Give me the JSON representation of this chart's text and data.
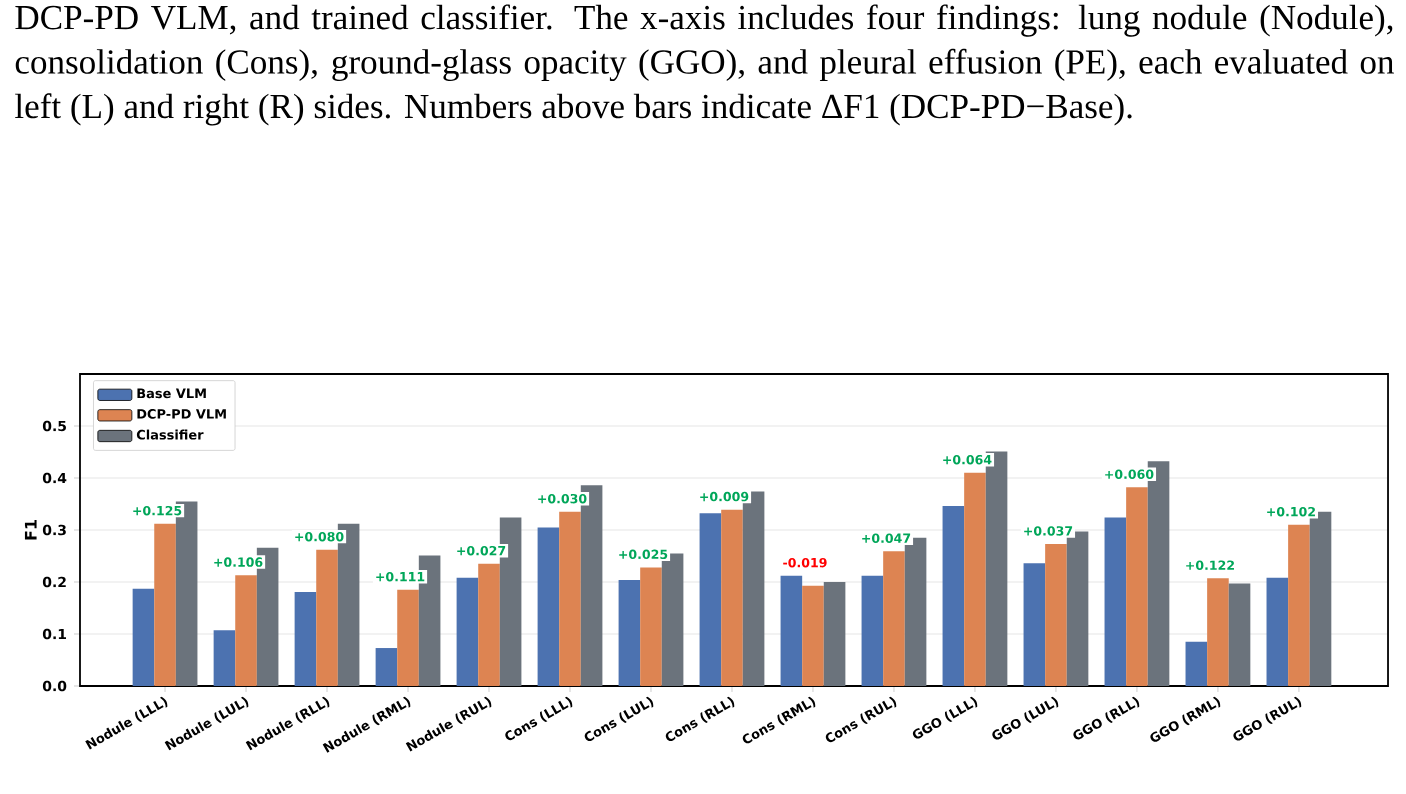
{
  "chart_data": {
    "type": "bar",
    "annotations": [
      "DCP-PD VLM, and trained classifier. The x-axis includes four findings: lung nodule (Nodule), consolidation (Cons), ground-glass opacity (GGO), and pleural effusion (PE), each evaluated on left (L) and right (R) sides. Numbers above bars indicate ΔF1 (DCP-PD−Base).",
      {
        "text": "+0.125",
        "x": "Nodule (LLL)",
        "y": 0.312
      },
      {
        "text": "+0.106",
        "x": "Nodule (LUL)",
        "y": 0.213
      },
      {
        "text": "+0.080",
        "x": "Nodule (RLL)",
        "y": 0.262
      },
      {
        "text": "+0.111",
        "x": "Nodule (RML)",
        "y": 0.185
      },
      {
        "text": "+0.027",
        "x": "Nodule (RUL)",
        "y": 0.235
      },
      {
        "text": "+0.030",
        "x": "Cons (LLL)",
        "y": 0.335
      },
      {
        "text": "+0.025",
        "x": "Cons (LUL)",
        "y": 0.228
      },
      {
        "text": "+0.009",
        "x": "Cons (RLL)",
        "y": 0.339
      },
      {
        "text": "-0.019",
        "x": "Cons (RML)",
        "y": 0.212
      },
      {
        "text": "+0.047",
        "x": "Cons (RUL)",
        "y": 0.259
      },
      {
        "text": "+0.064",
        "x": "GGO (LLL)",
        "y": 0.41
      },
      {
        "text": "+0.037",
        "x": "GGO (LUL)",
        "y": 0.273
      },
      {
        "text": "+0.060",
        "x": "GGO (RLL)",
        "y": 0.382
      },
      {
        "text": "+0.122",
        "x": "GGO (RML)",
        "y": 0.207
      },
      {
        "text": "+0.102",
        "x": "GGO (RUL)",
        "y": 0.31
      }
    ],
    "ylabel": "F1",
    "categories": [
      "Nodule (LLL)",
      "Nodule (LUL)",
      "Nodule (RLL)",
      "Nodule (RML)",
      "Nodule (RUL)",
      "Cons (LLL)",
      "Cons (LUL)",
      "Cons (RLL)",
      "Cons (RML)",
      "Cons (RUL)",
      "GGO (LLL)",
      "GGO (LUL)",
      "GGO (RLL)",
      "GGO (RML)",
      "GGO (RUL)"
    ],
    "series": [
      {
        "name": "Base VLM",
        "color": "#4c72b0",
        "values": [
          0.187,
          0.107,
          0.181,
          0.073,
          0.208,
          0.305,
          0.204,
          0.332,
          0.212,
          0.212,
          0.346,
          0.236,
          0.324,
          0.085,
          0.208
        ]
      },
      {
        "name": "DCP-PD VLM",
        "color": "#dd8452",
        "values": [
          0.312,
          0.213,
          0.262,
          0.185,
          0.235,
          0.335,
          0.228,
          0.339,
          0.193,
          0.259,
          0.41,
          0.273,
          0.382,
          0.207,
          0.31
        ]
      },
      {
        "name": "Classifier",
        "color": "#6b737c",
        "values": [
          0.355,
          0.266,
          0.312,
          0.251,
          0.324,
          0.386,
          0.255,
          0.374,
          0.2,
          0.285,
          0.451,
          0.297,
          0.432,
          0.197,
          0.335
        ]
      }
    ],
    "ylim": [
      0,
      0.6
    ],
    "yticks": [
      {
        "value": 0,
        "label": "0.0"
      },
      {
        "value": 0.1,
        "label": "0.1"
      },
      {
        "value": 0.2,
        "label": "0.2"
      },
      {
        "value": 0.3,
        "label": "0.3"
      },
      {
        "value": 0.4,
        "label": "0.4"
      },
      {
        "value": 0.5,
        "label": "0.5"
      }
    ],
    "grid": "y",
    "legend": "top left"
  }
}
